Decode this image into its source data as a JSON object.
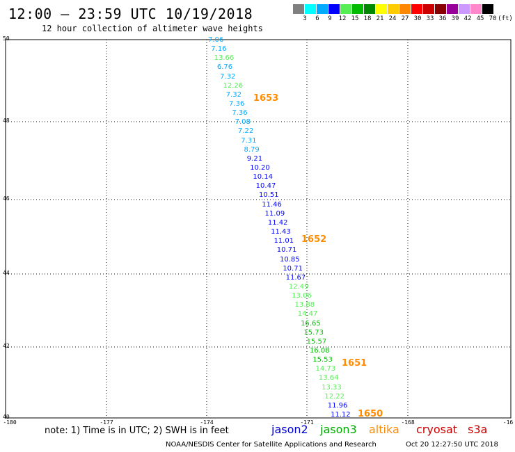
{
  "header": {
    "title": "12:00 – 23:59 UTC 10/19/2018",
    "subtitle": "12 hour collection of altimeter wave heights"
  },
  "color_scale": {
    "colors": [
      "#808080",
      "#00ffff",
      "#00aaff",
      "#0000ff",
      "#55ee55",
      "#00bb00",
      "#008800",
      "#ffff00",
      "#ffcc00",
      "#ff8800",
      "#ff0000",
      "#cc0000",
      "#880000",
      "#990099",
      "#cc99ff",
      "#ff88cc",
      "#000000"
    ],
    "labels": [
      "3",
      "6",
      "9",
      "12",
      "15",
      "18",
      "21",
      "24",
      "27",
      "30",
      "33",
      "36",
      "39",
      "42",
      "45",
      "70",
      "(ft)"
    ]
  },
  "axes": {
    "lat_labels": [
      "50",
      "48",
      "46",
      "44",
      "42",
      "40"
    ],
    "lon_labels": [
      "-180",
      "-177",
      "-174",
      "-171",
      "-168",
      "-16"
    ]
  },
  "observations": {
    "values": [
      "7.06",
      "7.16",
      "13.66",
      "6.76",
      "7.32",
      "12.26",
      "7.32",
      "7.36",
      "7.36",
      "7.08",
      "7.22",
      "7.31",
      "8.79",
      "9.21",
      "10.20",
      "10.14",
      "10.47",
      "10.51",
      "11.46",
      "11.09",
      "11.42",
      "11.43",
      "11.01",
      "10.71",
      "10.85",
      "10.71",
      "11.67",
      "12.49",
      "13.06",
      "13.88",
      "14.47",
      "16.65",
      "15.73",
      "15.57",
      "16.08",
      "15.53",
      "14.73",
      "13.64",
      "13.33",
      "12.22",
      "11.96",
      "11.12"
    ],
    "colors": [
      "#00aaff",
      "#00aaff",
      "#55ee55",
      "#00aaff",
      "#00aaff",
      "#55ee55",
      "#00aaff",
      "#00aaff",
      "#00aaff",
      "#00aaff",
      "#00aaff",
      "#00aaff",
      "#00aaff",
      "#0000ff",
      "#0000ff",
      "#0000ff",
      "#0000ff",
      "#0000ff",
      "#0000ff",
      "#0000ff",
      "#0000ff",
      "#0000ff",
      "#0000ff",
      "#0000ff",
      "#0000ff",
      "#0000ff",
      "#0000ff",
      "#55ee55",
      "#55ee55",
      "#55ee55",
      "#55ee55",
      "#00bb00",
      "#00bb00",
      "#00bb00",
      "#00bb00",
      "#00bb00",
      "#55ee55",
      "#55ee55",
      "#55ee55",
      "#55ee55",
      "#0000ff",
      "#0000ff"
    ]
  },
  "pass_times": [
    "1653",
    "1652",
    "1651",
    "1650"
  ],
  "footer": {
    "note": "note:  1) Time is in UTC;  2) SWH is in feet",
    "satellites": [
      {
        "name": "jason2",
        "color": "#0000cc"
      },
      {
        "name": "jason3",
        "color": "#00aa00"
      },
      {
        "name": "altika",
        "color": "#ff8c00"
      },
      {
        "name": "cryosat",
        "color": "#cc0000"
      },
      {
        "name": "s3a",
        "color": "#cc0000"
      }
    ],
    "credit": "NOAA/NESDIS Center for Satellite Applications and Research",
    "timestamp": "Oct 20 12:27:50 UTC 2018"
  }
}
